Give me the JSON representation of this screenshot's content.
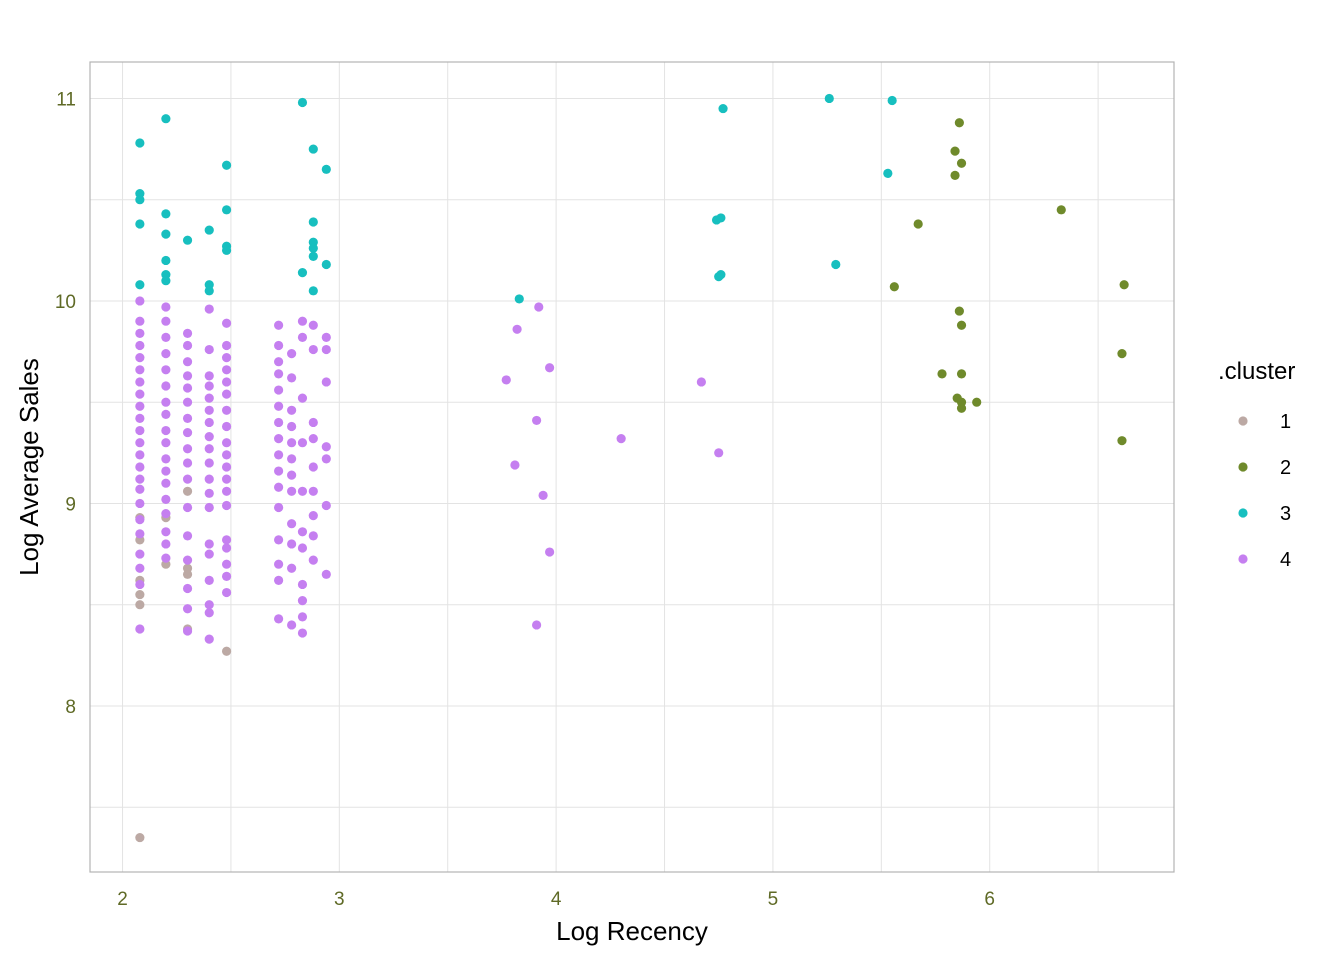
{
  "chart_data": {
    "type": "scatter",
    "title": "",
    "xlabel": "Log Recency",
    "ylabel": "Log Average Sales",
    "xlim": [
      1.85,
      6.85
    ],
    "ylim": [
      7.18,
      11.18
    ],
    "x_ticks": [
      2,
      3,
      4,
      5,
      6
    ],
    "y_ticks": [
      8,
      9,
      10,
      11
    ],
    "grid": true,
    "legend": {
      "title": ".cluster",
      "position": "right"
    },
    "colors": {
      "1": "#bca9a4",
      "2": "#6f8a2b",
      "3": "#17bfbf",
      "4": "#c57ff0"
    },
    "tick_color": "#5f6a26",
    "series": [
      {
        "name": "1",
        "points": [
          [
            2.08,
            7.35
          ],
          [
            2.08,
            8.5
          ],
          [
            2.08,
            8.55
          ],
          [
            2.08,
            8.62
          ],
          [
            2.08,
            8.82
          ],
          [
            2.08,
            8.93
          ],
          [
            2.2,
            8.7
          ],
          [
            2.2,
            8.93
          ],
          [
            2.3,
            8.65
          ],
          [
            2.3,
            8.68
          ],
          [
            2.3,
            9.06
          ],
          [
            2.3,
            8.38
          ],
          [
            2.48,
            8.27
          ]
        ]
      },
      {
        "name": "2",
        "points": [
          [
            5.56,
            10.07
          ],
          [
            5.67,
            10.38
          ],
          [
            5.78,
            9.64
          ],
          [
            5.84,
            10.74
          ],
          [
            5.84,
            10.62
          ],
          [
            5.86,
            10.88
          ],
          [
            5.87,
            10.68
          ],
          [
            5.86,
            9.95
          ],
          [
            5.87,
            9.88
          ],
          [
            5.87,
            9.64
          ],
          [
            5.85,
            9.52
          ],
          [
            5.87,
            9.5
          ],
          [
            5.87,
            9.47
          ],
          [
            5.94,
            9.5
          ],
          [
            6.33,
            10.45
          ],
          [
            6.62,
            10.08
          ],
          [
            6.61,
            9.74
          ],
          [
            6.61,
            9.31
          ]
        ]
      },
      {
        "name": "3",
        "points": [
          [
            2.08,
            10.78
          ],
          [
            2.08,
            10.53
          ],
          [
            2.08,
            10.5
          ],
          [
            2.08,
            10.38
          ],
          [
            2.08,
            10.08
          ],
          [
            2.2,
            10.9
          ],
          [
            2.2,
            10.43
          ],
          [
            2.2,
            10.33
          ],
          [
            2.2,
            10.2
          ],
          [
            2.2,
            10.13
          ],
          [
            2.2,
            10.1
          ],
          [
            2.3,
            10.3
          ],
          [
            2.4,
            10.35
          ],
          [
            2.4,
            10.08
          ],
          [
            2.4,
            10.05
          ],
          [
            2.48,
            10.67
          ],
          [
            2.48,
            10.45
          ],
          [
            2.48,
            10.27
          ],
          [
            2.48,
            10.25
          ],
          [
            2.83,
            10.98
          ],
          [
            2.83,
            10.14
          ],
          [
            2.88,
            10.75
          ],
          [
            2.88,
            10.39
          ],
          [
            2.88,
            10.29
          ],
          [
            2.88,
            10.26
          ],
          [
            2.88,
            10.22
          ],
          [
            2.88,
            10.05
          ],
          [
            2.94,
            10.65
          ],
          [
            2.94,
            10.18
          ],
          [
            3.83,
            10.01
          ],
          [
            4.74,
            10.4
          ],
          [
            4.76,
            10.41
          ],
          [
            4.75,
            10.12
          ],
          [
            4.76,
            10.13
          ],
          [
            4.77,
            10.95
          ],
          [
            5.26,
            11.0
          ],
          [
            5.29,
            10.18
          ],
          [
            5.53,
            10.63
          ],
          [
            5.55,
            10.99
          ]
        ]
      },
      {
        "name": "4",
        "points": [
          [
            2.08,
            8.38
          ],
          [
            2.08,
            8.6
          ],
          [
            2.08,
            8.68
          ],
          [
            2.08,
            8.75
          ],
          [
            2.08,
            8.85
          ],
          [
            2.08,
            8.92
          ],
          [
            2.08,
            9.0
          ],
          [
            2.08,
            9.07
          ],
          [
            2.08,
            9.12
          ],
          [
            2.08,
            9.18
          ],
          [
            2.08,
            9.24
          ],
          [
            2.08,
            9.3
          ],
          [
            2.08,
            9.36
          ],
          [
            2.08,
            9.42
          ],
          [
            2.08,
            9.48
          ],
          [
            2.08,
            9.54
          ],
          [
            2.08,
            9.6
          ],
          [
            2.08,
            9.66
          ],
          [
            2.08,
            9.72
          ],
          [
            2.08,
            9.78
          ],
          [
            2.08,
            9.84
          ],
          [
            2.08,
            9.9
          ],
          [
            2.08,
            10.0
          ],
          [
            2.2,
            8.73
          ],
          [
            2.2,
            8.8
          ],
          [
            2.2,
            8.86
          ],
          [
            2.2,
            8.95
          ],
          [
            2.2,
            9.02
          ],
          [
            2.2,
            9.1
          ],
          [
            2.2,
            9.16
          ],
          [
            2.2,
            9.22
          ],
          [
            2.2,
            9.3
          ],
          [
            2.2,
            9.36
          ],
          [
            2.2,
            9.44
          ],
          [
            2.2,
            9.5
          ],
          [
            2.2,
            9.58
          ],
          [
            2.2,
            9.66
          ],
          [
            2.2,
            9.74
          ],
          [
            2.2,
            9.82
          ],
          [
            2.2,
            9.9
          ],
          [
            2.2,
            9.97
          ],
          [
            2.3,
            8.37
          ],
          [
            2.3,
            8.48
          ],
          [
            2.3,
            8.58
          ],
          [
            2.3,
            8.72
          ],
          [
            2.3,
            8.84
          ],
          [
            2.3,
            8.98
          ],
          [
            2.3,
            9.12
          ],
          [
            2.3,
            9.2
          ],
          [
            2.3,
            9.27
          ],
          [
            2.3,
            9.35
          ],
          [
            2.3,
            9.42
          ],
          [
            2.3,
            9.5
          ],
          [
            2.3,
            9.57
          ],
          [
            2.3,
            9.63
          ],
          [
            2.3,
            9.7
          ],
          [
            2.3,
            9.78
          ],
          [
            2.3,
            9.84
          ],
          [
            2.4,
            8.33
          ],
          [
            2.4,
            8.46
          ],
          [
            2.4,
            8.5
          ],
          [
            2.4,
            8.62
          ],
          [
            2.4,
            8.75
          ],
          [
            2.4,
            8.8
          ],
          [
            2.4,
            8.98
          ],
          [
            2.4,
            9.05
          ],
          [
            2.4,
            9.12
          ],
          [
            2.4,
            9.2
          ],
          [
            2.4,
            9.27
          ],
          [
            2.4,
            9.33
          ],
          [
            2.4,
            9.4
          ],
          [
            2.4,
            9.46
          ],
          [
            2.4,
            9.52
          ],
          [
            2.4,
            9.58
          ],
          [
            2.4,
            9.63
          ],
          [
            2.4,
            9.76
          ],
          [
            2.4,
            9.96
          ],
          [
            2.48,
            8.56
          ],
          [
            2.48,
            8.64
          ],
          [
            2.48,
            8.7
          ],
          [
            2.48,
            8.78
          ],
          [
            2.48,
            8.82
          ],
          [
            2.48,
            8.99
          ],
          [
            2.48,
            9.06
          ],
          [
            2.48,
            9.12
          ],
          [
            2.48,
            9.18
          ],
          [
            2.48,
            9.24
          ],
          [
            2.48,
            9.3
          ],
          [
            2.48,
            9.38
          ],
          [
            2.48,
            9.46
          ],
          [
            2.48,
            9.54
          ],
          [
            2.48,
            9.6
          ],
          [
            2.48,
            9.66
          ],
          [
            2.48,
            9.72
          ],
          [
            2.48,
            9.78
          ],
          [
            2.48,
            9.89
          ],
          [
            2.72,
            8.43
          ],
          [
            2.72,
            8.62
          ],
          [
            2.72,
            8.7
          ],
          [
            2.72,
            8.82
          ],
          [
            2.72,
            8.98
          ],
          [
            2.72,
            9.08
          ],
          [
            2.72,
            9.16
          ],
          [
            2.72,
            9.24
          ],
          [
            2.72,
            9.32
          ],
          [
            2.72,
            9.4
          ],
          [
            2.72,
            9.48
          ],
          [
            2.72,
            9.56
          ],
          [
            2.72,
            9.64
          ],
          [
            2.72,
            9.7
          ],
          [
            2.72,
            9.78
          ],
          [
            2.72,
            9.88
          ],
          [
            2.78,
            8.4
          ],
          [
            2.78,
            8.68
          ],
          [
            2.78,
            8.8
          ],
          [
            2.78,
            8.9
          ],
          [
            2.78,
            9.06
          ],
          [
            2.78,
            9.14
          ],
          [
            2.78,
            9.22
          ],
          [
            2.78,
            9.3
          ],
          [
            2.78,
            9.38
          ],
          [
            2.78,
            9.46
          ],
          [
            2.78,
            9.62
          ],
          [
            2.78,
            9.74
          ],
          [
            2.83,
            8.36
          ],
          [
            2.83,
            8.44
          ],
          [
            2.83,
            8.52
          ],
          [
            2.83,
            8.6
          ],
          [
            2.83,
            8.78
          ],
          [
            2.83,
            8.86
          ],
          [
            2.83,
            9.06
          ],
          [
            2.83,
            9.3
          ],
          [
            2.83,
            9.52
          ],
          [
            2.83,
            9.82
          ],
          [
            2.83,
            9.9
          ],
          [
            2.88,
            8.72
          ],
          [
            2.88,
            8.84
          ],
          [
            2.88,
            8.94
          ],
          [
            2.88,
            9.06
          ],
          [
            2.88,
            9.18
          ],
          [
            2.88,
            9.32
          ],
          [
            2.88,
            9.4
          ],
          [
            2.88,
            9.76
          ],
          [
            2.88,
            9.88
          ],
          [
            2.94,
            8.65
          ],
          [
            2.94,
            8.99
          ],
          [
            2.94,
            9.22
          ],
          [
            2.94,
            9.28
          ],
          [
            2.94,
            9.6
          ],
          [
            2.94,
            9.76
          ],
          [
            2.94,
            9.82
          ],
          [
            3.77,
            9.61
          ],
          [
            3.81,
            9.19
          ],
          [
            3.82,
            9.86
          ],
          [
            3.91,
            8.4
          ],
          [
            3.91,
            9.41
          ],
          [
            3.92,
            9.97
          ],
          [
            3.94,
            9.04
          ],
          [
            3.97,
            8.76
          ],
          [
            3.97,
            9.67
          ],
          [
            4.3,
            9.32
          ],
          [
            4.67,
            9.6
          ],
          [
            4.75,
            9.25
          ]
        ]
      }
    ]
  }
}
